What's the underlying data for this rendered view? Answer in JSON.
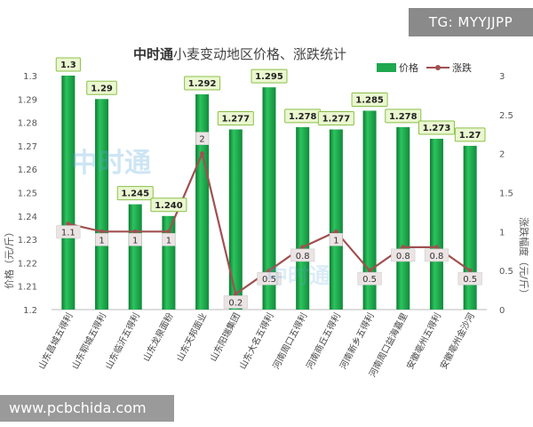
{
  "watermarks": {
    "top_badge": "TG: MYYJJPP",
    "footer_url": "www.pcbchida.com",
    "logo_text": "中时通"
  },
  "chart_data": {
    "type": "bar",
    "title": "中时通小麦变动地区价格、涨跌统计",
    "title_brand": "中时通",
    "title_rest": "小麦变动地区价格、涨跌统计",
    "categories": [
      "山东昌城五得利",
      "山东郓城五得利",
      "山东临沂五得利",
      "山东龙泉面粉",
      "山东天邦面业",
      "山东阳瑞集团",
      "山东大名五得利",
      "河南周口五得利",
      "河南商丘五得利",
      "河南新乡五得利",
      "河南周口益海嘉里",
      "安徽亳州五得利",
      "安徽亳州金沙河"
    ],
    "series": [
      {
        "name": "价格",
        "type": "bar",
        "axis": "left",
        "color": "#1fa84f",
        "values": [
          1.3,
          1.29,
          1.245,
          1.24,
          1.292,
          1.277,
          1.295,
          1.278,
          1.277,
          1.285,
          1.278,
          1.273,
          1.27
        ]
      },
      {
        "name": "涨跌",
        "type": "line",
        "axis": "right",
        "color": "#a05050",
        "values": [
          1.1,
          1,
          1,
          1,
          2,
          0.2,
          0.5,
          0.8,
          1,
          0.5,
          0.8,
          0.8,
          0.5
        ]
      }
    ],
    "bar_labels": [
      "1.3",
      "1.29",
      "1.245",
      "1.240",
      "1.292",
      "1.277",
      "1.295",
      "1.278",
      "1.277",
      "1.285",
      "1.278",
      "1.273",
      "1.27"
    ],
    "line_labels": [
      "1.1",
      "1",
      "1",
      "1",
      "2",
      "0.2",
      "0.5",
      "0.8",
      "1",
      "0.5",
      "0.8",
      "0.8",
      "0.5"
    ],
    "ylabel": "价格（元/斤）",
    "y2label": "涨跌幅度（元/斤）",
    "ylim": [
      1.2,
      1.3
    ],
    "y2lim": [
      0,
      3
    ],
    "yticks": [
      "1.2",
      "1.21",
      "1.22",
      "1.23",
      "1.24",
      "1.25",
      "1.26",
      "1.27",
      "1.28",
      "1.29",
      "1.3"
    ],
    "y2ticks": [
      "0",
      "0.5",
      "1",
      "1.5",
      "2",
      "2.5",
      "3"
    ],
    "legend": [
      "价格",
      "涨跌"
    ],
    "legend_position": "top-right",
    "grid": false,
    "colors": {
      "bar": "#1fa84f",
      "bar_dark": "#0f7a33",
      "line": "#a05050",
      "label_bg": "#eaf7d0",
      "label_border": "#8cc04a",
      "line_label_bg": "#ece4e4"
    }
  }
}
